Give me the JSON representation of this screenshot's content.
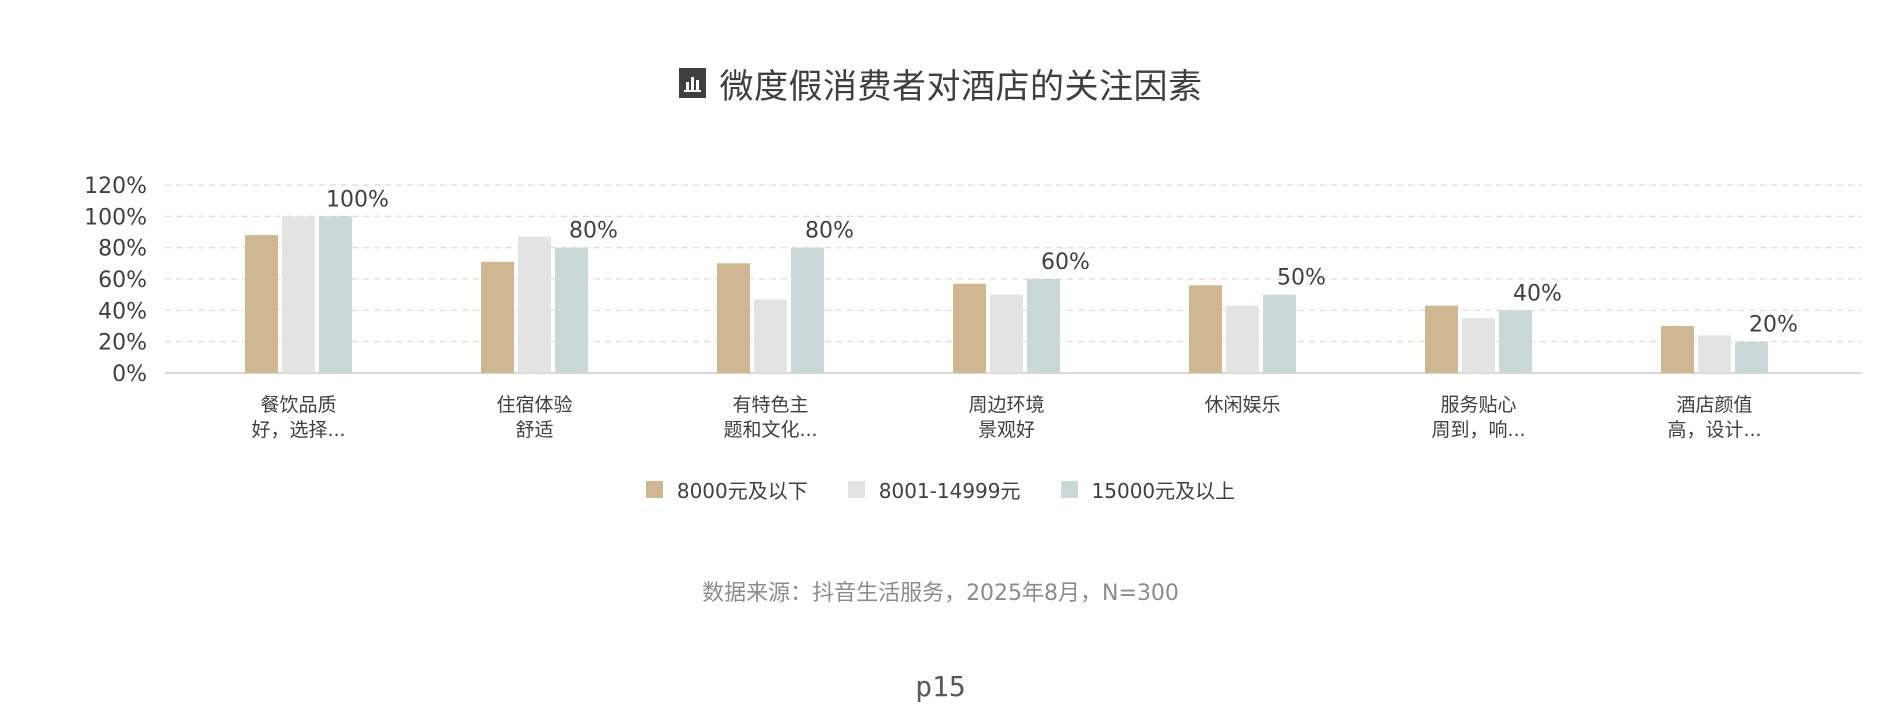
{
  "title": "微度假消费者对酒店的关注因素",
  "source": "数据来源：抖音生活服务，2025年8月，N=300",
  "page": "p15",
  "colors": {
    "series1": "#cfb792",
    "series2": "#e3e3e3",
    "series3": "#cbd8d8",
    "grid": "#d9d9d9",
    "axis": "#cccccc",
    "text": "#404040"
  },
  "chart_data": {
    "type": "bar",
    "title": "微度假消费者对酒店的关注因素",
    "categories": [
      [
        "餐饮品质",
        "好，选择..."
      ],
      [
        "住宿体验",
        "舒适"
      ],
      [
        "有特色主",
        "题和文化..."
      ],
      [
        "周边环境",
        "景观好"
      ],
      [
        "休闲娱乐"
      ],
      [
        "服务贴心",
        "周到，响..."
      ],
      [
        "酒店颜值",
        "高，设计..."
      ]
    ],
    "y_ticks": [
      "0%",
      "20%",
      "40%",
      "60%",
      "80%",
      "100%",
      "120%"
    ],
    "ylim": [
      0,
      120
    ],
    "grid": true,
    "legend_position": "bottom",
    "series": [
      {
        "name": "8000元及以下",
        "values": [
          88,
          71,
          70,
          57,
          56,
          43,
          30
        ]
      },
      {
        "name": "8001-14999元",
        "values": [
          100,
          87,
          47,
          50,
          43,
          35,
          24
        ]
      },
      {
        "name": "15000元及以上",
        "values": [
          100,
          80,
          80,
          60,
          50,
          40,
          20
        ],
        "labels": [
          "100%",
          "80%",
          "80%",
          "60%",
          "50%",
          "40%",
          "20%"
        ]
      }
    ]
  }
}
